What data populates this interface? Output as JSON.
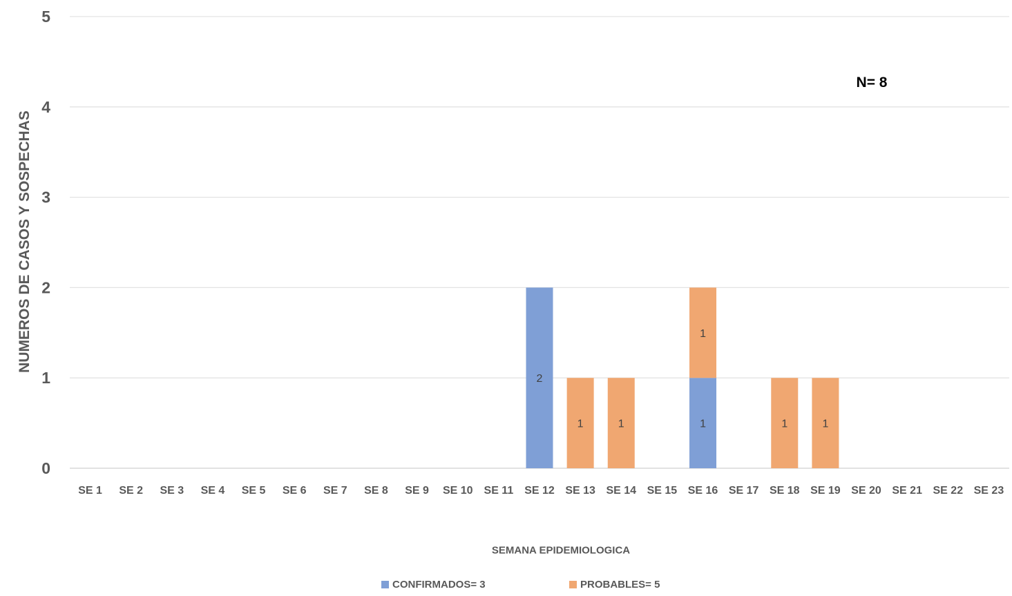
{
  "chart_data": {
    "type": "bar",
    "stacked": true,
    "title": "",
    "xlabel": "SEMANA EPIDEMIOLOGICA",
    "ylabel": "NUMEROS DE CASOS Y SOSPECHAS",
    "ylim": [
      0,
      5
    ],
    "yticks": [
      0,
      1,
      2,
      3,
      4,
      5
    ],
    "grid": true,
    "legend_position": "bottom",
    "annotation": "N= 8",
    "categories": [
      "SE 1",
      "SE 2",
      "SE 3",
      "SE 4",
      "SE 5",
      "SE 6",
      "SE 7",
      "SE 8",
      "SE 9",
      "SE 10",
      "SE 11",
      "SE 12",
      "SE 13",
      "SE 14",
      "SE 15",
      "SE 16",
      "SE 17",
      "SE 18",
      "SE 19",
      "SE 20",
      "SE 21",
      "SE 22",
      "SE 23"
    ],
    "series": [
      {
        "name": "CONFIRMADOS= 3",
        "color": "#7f9fd6",
        "values": [
          0,
          0,
          0,
          0,
          0,
          0,
          0,
          0,
          0,
          0,
          0,
          2,
          0,
          0,
          0,
          1,
          0,
          0,
          0,
          0,
          0,
          0,
          0
        ]
      },
      {
        "name": "PROBABLES= 5",
        "color": "#f0a771",
        "values": [
          0,
          0,
          0,
          0,
          0,
          0,
          0,
          0,
          0,
          0,
          0,
          0,
          1,
          1,
          0,
          1,
          0,
          1,
          1,
          0,
          0,
          0,
          0
        ]
      }
    ]
  }
}
